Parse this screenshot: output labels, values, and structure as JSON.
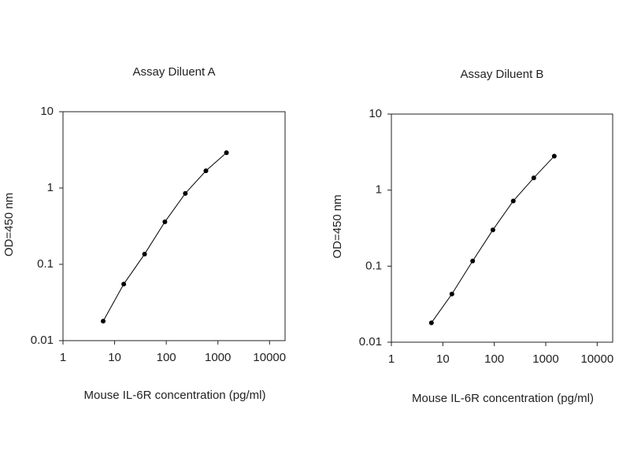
{
  "chart_data": [
    {
      "type": "line",
      "title": "Assay Diluent A",
      "xlabel": "Mouse IL-6R concentration (pg/ml)",
      "ylabel": "OD=450 nm",
      "x": [
        6,
        15,
        38,
        94,
        234,
        586,
        1465
      ],
      "series": [
        {
          "color": "#000000",
          "values": [
            0.018,
            0.055,
            0.136,
            0.36,
            0.85,
            1.68,
            2.9
          ]
        }
      ],
      "xlim": [
        1,
        20000
      ],
      "ylim": [
        0.01,
        10
      ],
      "xticks": [
        1,
        10,
        100,
        1000,
        10000
      ],
      "yticks": [
        0.01,
        0.1,
        1,
        10
      ],
      "xlog": true,
      "ylog": true,
      "grid": false
    },
    {
      "type": "line",
      "title": "Assay Diluent B",
      "xlabel": "Mouse IL-6R concentration (pg/ml)",
      "ylabel": "OD=450 nm",
      "x": [
        6,
        15,
        38,
        94,
        234,
        586,
        1465
      ],
      "series": [
        {
          "color": "#000000",
          "values": [
            0.018,
            0.043,
            0.117,
            0.3,
            0.72,
            1.45,
            2.8
          ]
        }
      ],
      "xlim": [
        1,
        20000
      ],
      "ylim": [
        0.01,
        10
      ],
      "xticks": [
        1,
        10,
        100,
        1000,
        10000
      ],
      "yticks": [
        0.01,
        0.1,
        1,
        10
      ],
      "xlog": true,
      "ylog": true,
      "grid": false
    }
  ]
}
